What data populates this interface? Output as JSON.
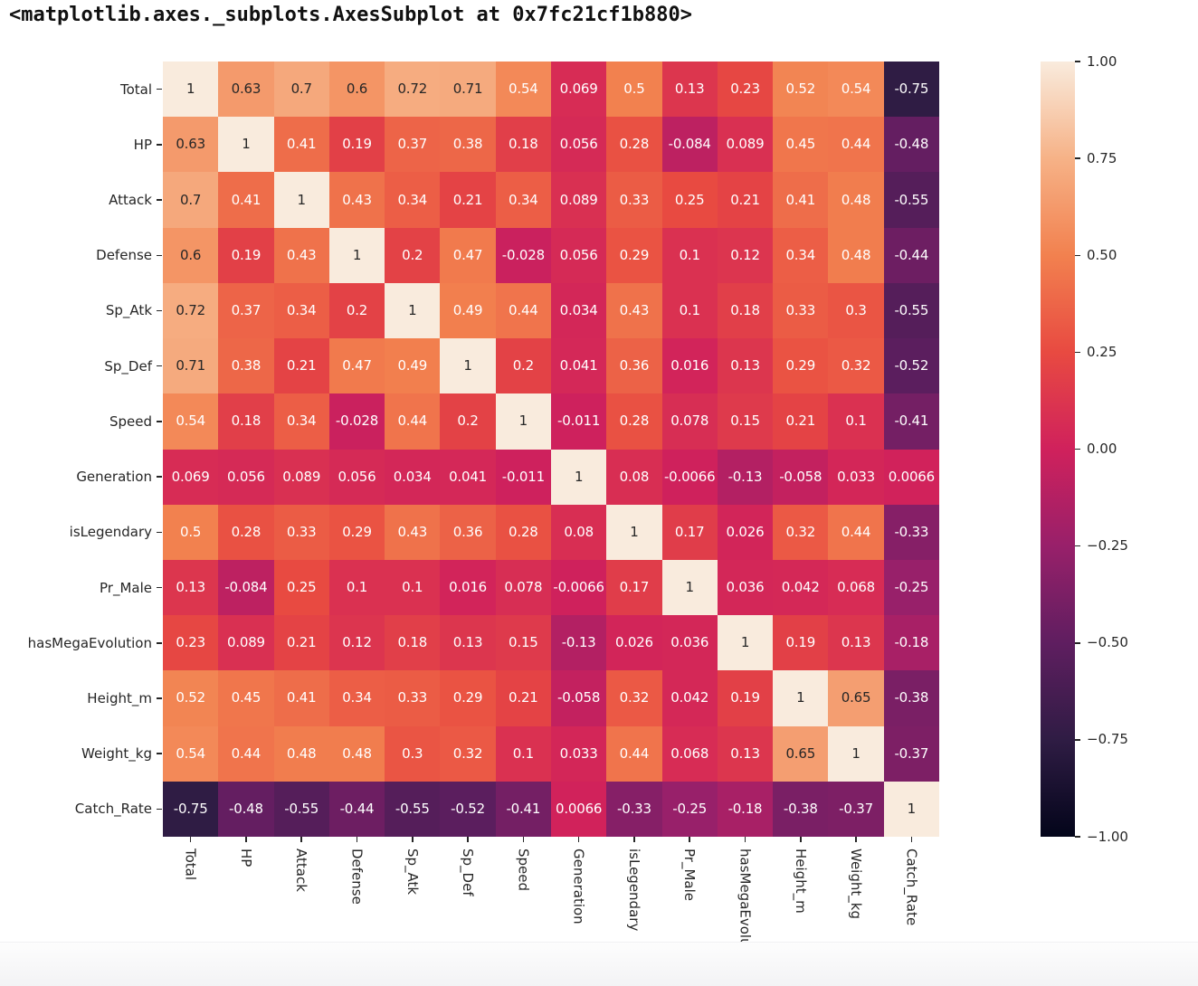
{
  "title": "<matplotlib.axes._subplots.AxesSubplot at 0x7fc21cf1b880>",
  "chart_data": {
    "type": "heatmap",
    "description": "Correlation matrix heatmap with numeric annotations",
    "labels": [
      "Total",
      "HP",
      "Attack",
      "Defense",
      "Sp_Atk",
      "Sp_Def",
      "Speed",
      "Generation",
      "isLegendary",
      "Pr_Male",
      "hasMegaEvolution",
      "Height_m",
      "Weight_kg",
      "Catch_Rate"
    ],
    "matrix": [
      [
        "1",
        "0.63",
        "0.7",
        "0.6",
        "0.72",
        "0.71",
        "0.54",
        "0.069",
        "0.5",
        "0.13",
        "0.23",
        "0.52",
        "0.54",
        "-0.75"
      ],
      [
        "0.63",
        "1",
        "0.41",
        "0.19",
        "0.37",
        "0.38",
        "0.18",
        "0.056",
        "0.28",
        "-0.084",
        "0.089",
        "0.45",
        "0.44",
        "-0.48"
      ],
      [
        "0.7",
        "0.41",
        "1",
        "0.43",
        "0.34",
        "0.21",
        "0.34",
        "0.089",
        "0.33",
        "0.25",
        "0.21",
        "0.41",
        "0.48",
        "-0.55"
      ],
      [
        "0.6",
        "0.19",
        "0.43",
        "1",
        "0.2",
        "0.47",
        "-0.028",
        "0.056",
        "0.29",
        "0.1",
        "0.12",
        "0.34",
        "0.48",
        "-0.44"
      ],
      [
        "0.72",
        "0.37",
        "0.34",
        "0.2",
        "1",
        "0.49",
        "0.44",
        "0.034",
        "0.43",
        "0.1",
        "0.18",
        "0.33",
        "0.3",
        "-0.55"
      ],
      [
        "0.71",
        "0.38",
        "0.21",
        "0.47",
        "0.49",
        "1",
        "0.2",
        "0.041",
        "0.36",
        "0.016",
        "0.13",
        "0.29",
        "0.32",
        "-0.52"
      ],
      [
        "0.54",
        "0.18",
        "0.34",
        "-0.028",
        "0.44",
        "0.2",
        "1",
        "-0.011",
        "0.28",
        "0.078",
        "0.15",
        "0.21",
        "0.1",
        "-0.41"
      ],
      [
        "0.069",
        "0.056",
        "0.089",
        "0.056",
        "0.034",
        "0.041",
        "-0.011",
        "1",
        "0.08",
        "-0.0066",
        "-0.13",
        "-0.058",
        "0.033",
        "0.0066"
      ],
      [
        "0.5",
        "0.28",
        "0.33",
        "0.29",
        "0.43",
        "0.36",
        "0.28",
        "0.08",
        "1",
        "0.17",
        "0.026",
        "0.32",
        "0.44",
        "-0.33"
      ],
      [
        "0.13",
        "-0.084",
        "0.25",
        "0.1",
        "0.1",
        "0.016",
        "0.078",
        "-0.0066",
        "0.17",
        "1",
        "0.036",
        "0.042",
        "0.068",
        "-0.25"
      ],
      [
        "0.23",
        "0.089",
        "0.21",
        "0.12",
        "0.18",
        "0.13",
        "0.15",
        "-0.13",
        "0.026",
        "0.036",
        "1",
        "0.19",
        "0.13",
        "-0.18"
      ],
      [
        "0.52",
        "0.45",
        "0.41",
        "0.34",
        "0.33",
        "0.29",
        "0.21",
        "-0.058",
        "0.32",
        "0.042",
        "0.19",
        "1",
        "0.65",
        "-0.38"
      ],
      [
        "0.54",
        "0.44",
        "0.48",
        "0.48",
        "0.3",
        "0.32",
        "0.1",
        "0.033",
        "0.44",
        "0.068",
        "0.13",
        "0.65",
        "1",
        "-0.37"
      ],
      [
        "-0.75",
        "-0.48",
        "-0.55",
        "-0.44",
        "-0.55",
        "-0.52",
        "-0.41",
        "0.0066",
        "-0.33",
        "-0.25",
        "-0.18",
        "-0.38",
        "-0.37",
        "1"
      ]
    ],
    "value_range": [
      -1,
      1
    ],
    "colormap": {
      "name": "rocket",
      "stops": [
        [
          0.0,
          "#03051a"
        ],
        [
          0.125,
          "#2f1c44"
        ],
        [
          0.25,
          "#5f1e60"
        ],
        [
          0.375,
          "#98206a"
        ],
        [
          0.5,
          "#d0215c"
        ],
        [
          0.625,
          "#e84a41"
        ],
        [
          0.75,
          "#f2814f"
        ],
        [
          0.875,
          "#f6b287"
        ],
        [
          1.0,
          "#f9ebdd"
        ]
      ]
    },
    "colorbar_ticks": [
      "1.00",
      "0.75",
      "0.50",
      "0.25",
      "0.00",
      "−0.25",
      "−0.50",
      "−0.75",
      "−1.00"
    ],
    "annotation_colors": {
      "dark": "#262626",
      "light": "#ffffff"
    },
    "legend_position": "right",
    "grid": false
  }
}
